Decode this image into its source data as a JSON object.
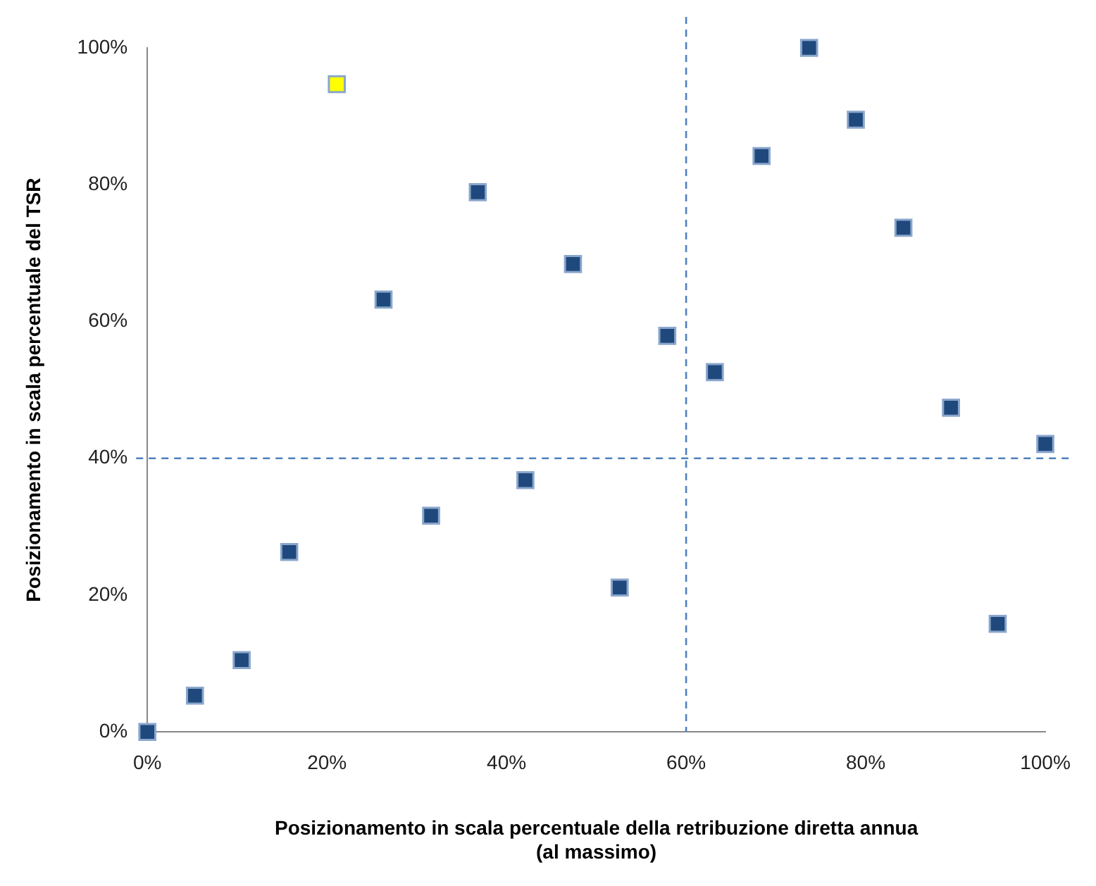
{
  "chart_data": {
    "type": "scatter",
    "xlabel": "Posizionamento in scala percentuale della retribuzione diretta annua\n(al massimo)",
    "ylabel": "Posizionamento in scala percentuale del TSR",
    "series": [
      {
        "color": "#1f497d",
        "x": [
          0,
          5.3,
          10.5,
          15.8,
          26.3,
          31.6,
          36.8,
          42.1,
          47.4,
          52.6,
          57.9,
          63.2,
          68.4,
          73.7,
          78.9,
          84.2,
          89.5,
          94.7,
          100
        ],
        "values": [
          0,
          5.3,
          10.5,
          26.3,
          63.2,
          31.6,
          78.9,
          36.8,
          68.4,
          21.1,
          57.9,
          52.6,
          84.2,
          100,
          89.5,
          73.7,
          47.4,
          15.8,
          42.1
        ]
      },
      {
        "color": "#ffff00",
        "x": [
          21.1
        ],
        "values": [
          94.7
        ]
      }
    ],
    "xlim": [
      0,
      100
    ],
    "ylim": [
      0,
      100
    ],
    "xticks": [
      {
        "value": 0,
        "label": "0%"
      },
      {
        "value": 20,
        "label": "20%"
      },
      {
        "value": 40,
        "label": "40%"
      },
      {
        "value": 60,
        "label": "60%"
      },
      {
        "value": 80,
        "label": "80%"
      },
      {
        "value": 100,
        "label": "100%"
      }
    ],
    "yticks": [
      {
        "value": 0,
        "label": "0%"
      },
      {
        "value": 20,
        "label": "20%"
      },
      {
        "value": 40,
        "label": "40%"
      },
      {
        "value": 60,
        "label": "60%"
      },
      {
        "value": 80,
        "label": "80%"
      },
      {
        "value": 100,
        "label": "100%"
      }
    ],
    "ref_lines": [
      {
        "axis": "x",
        "value": 60,
        "color": "#4f81bd",
        "line_style": "dashed"
      },
      {
        "axis": "y",
        "value": 40,
        "color": "#4f81bd",
        "line_style": "dashed"
      }
    ],
    "grid": false,
    "legend": false,
    "marker": "square"
  }
}
